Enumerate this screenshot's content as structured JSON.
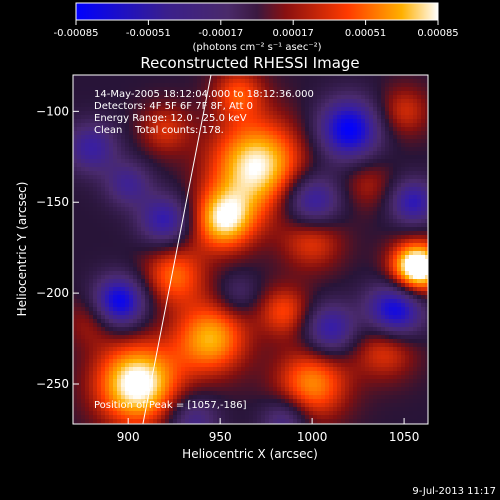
{
  "chart_data": {
    "type": "heatmap",
    "title": "Reconstructed RHESSI Image",
    "colorbar": {
      "ticks": [
        "-0.00085",
        "-0.00051",
        "-0.00017",
        "0.00017",
        "0.00051",
        "0.00085"
      ],
      "range": [
        -0.00085,
        0.00085
      ],
      "unit_label": "(photons cm⁻² s⁻¹ asec⁻²)"
    },
    "xlabel": "Heliocentric X (arcsec)",
    "ylabel": "Heliocentric Y (arcsec)",
    "xlim": [
      870,
      1063
    ],
    "ylim": [
      -272,
      -80
    ],
    "xticks": [
      900,
      950,
      1000,
      1050
    ],
    "yticks": [
      -100,
      -150,
      -200,
      -250
    ],
    "annotations": [
      "14-May-2005 18:12:04.000 to 18:12:36.000",
      "Detectors: 4F 5F 6F 7F 8F, Att 0",
      "Energy Range: 12.0 - 25.0 keV",
      "Clean    Total counts: 178."
    ],
    "peak_label": "Position of Peak = [1057,-186]",
    "peak": [
      1057,
      -186
    ],
    "limb": [
      [
        945,
        -80
      ],
      [
        908,
        -272
      ]
    ],
    "timestamp": "9-Jul-2013 11:17"
  }
}
